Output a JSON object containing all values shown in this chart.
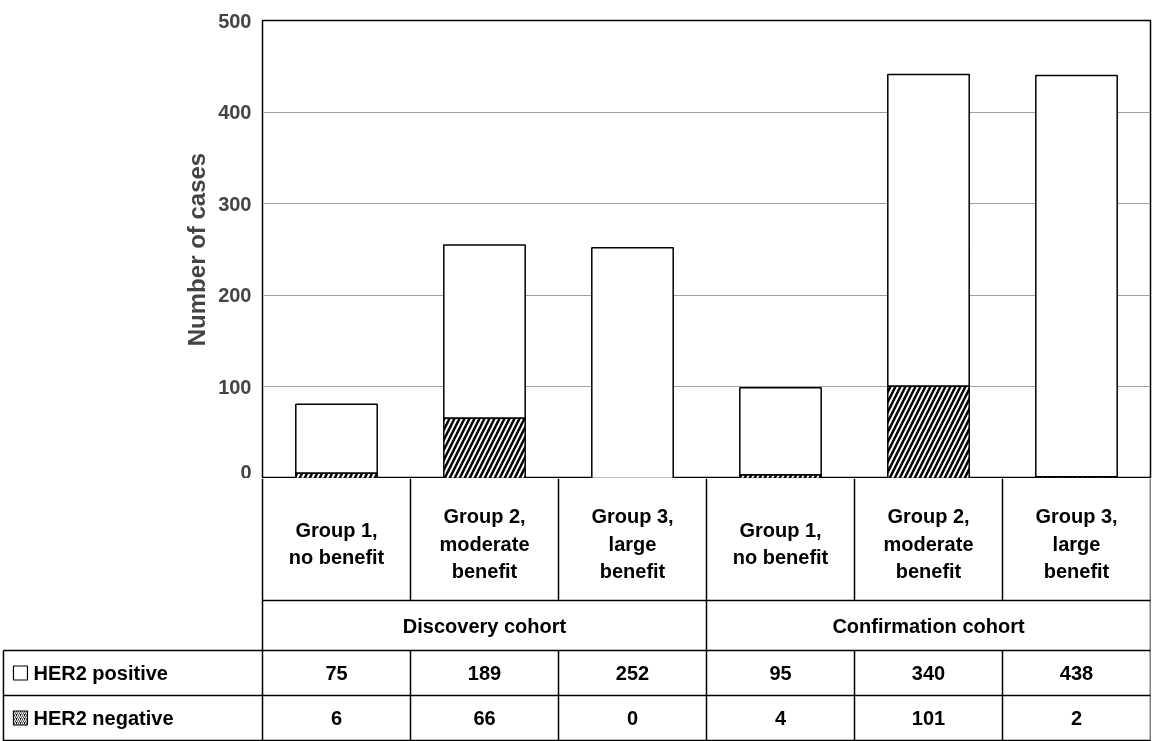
{
  "chart_data": {
    "type": "bar",
    "stacked": true,
    "ylabel": "Number of cases",
    "categories": [
      "Group 1,\nno benefit",
      "Group 2,\nmoderate\nbenefit",
      "Group 3,\nlarge\nbenefit",
      "Group 1,\nno benefit",
      "Group 2,\nmoderate\nbenefit",
      "Group 3,\nlarge\nbenefit"
    ],
    "series": [
      {
        "name": "HER2 negative",
        "color": "#000000",
        "values": [
          6,
          66,
          0,
          4,
          101,
          2
        ]
      },
      {
        "name": "HER2 positive",
        "color": "#ffffff",
        "values": [
          75,
          189,
          252,
          95,
          340,
          438
        ]
      }
    ],
    "annotations": [
      "Discovery cohort",
      "Confirmation cohort"
    ],
    "ylim": [
      0,
      500
    ],
    "yticks": [
      0,
      100,
      200,
      300,
      400,
      500
    ],
    "grid": "y",
    "legend": "bottom left",
    "data_labels": true
  }
}
